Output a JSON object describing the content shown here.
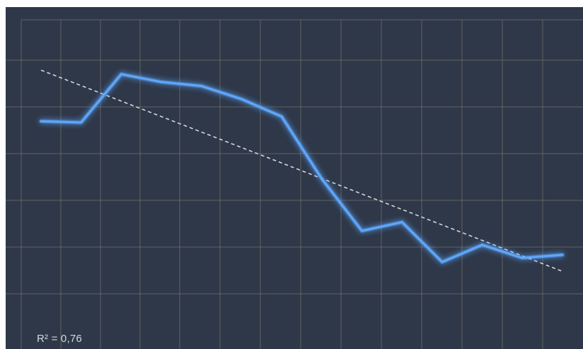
{
  "chart_data": {
    "type": "line",
    "x": [
      1,
      2,
      3,
      4,
      5,
      6,
      7,
      8,
      9,
      10,
      11,
      12,
      13,
      14
    ],
    "series": [
      {
        "values": [
          7.54,
          7.5,
          9.05,
          8.8,
          8.67,
          8.25,
          7.69,
          5.69,
          4.02,
          4.3,
          3.02,
          3.57,
          3.15,
          3.25
        ]
      }
    ],
    "trendline": {
      "type": "linear",
      "start": [
        1,
        9.18
      ],
      "end": [
        14,
        2.72
      ]
    },
    "r2_label": "R² = 0,76",
    "ylim": [
      1,
      10
    ],
    "xlim": [
      1,
      14
    ],
    "grid": true,
    "colors": {
      "background": "#2f3849",
      "grid": "#8a8374",
      "line": "#5ea8ff",
      "trendline": "#e6e8ec"
    }
  }
}
